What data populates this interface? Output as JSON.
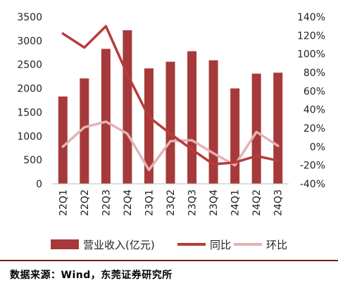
{
  "chart_data": {
    "type": "bar",
    "categories": [
      "22Q1",
      "22Q2",
      "22Q3",
      "22Q4",
      "23Q1",
      "23Q2",
      "23Q3",
      "23Q4",
      "24Q1",
      "24Q2",
      "24Q3"
    ],
    "series": [
      {
        "name": "营业收入(亿元)",
        "type": "bar",
        "axis": "left",
        "color": "#a63a3a",
        "values": [
          1830,
          2210,
          2830,
          3220,
          2420,
          2560,
          2780,
          2590,
          2000,
          2310,
          2330
        ]
      },
      {
        "name": "同比",
        "type": "line",
        "axis": "right",
        "color": "#b83b3b",
        "values": [
          122,
          107,
          130,
          78,
          32,
          14,
          -3,
          -19,
          -17,
          -10,
          -15
        ]
      },
      {
        "name": "环比",
        "type": "line",
        "axis": "right",
        "color": "#e3b3b3",
        "values": [
          0,
          21,
          27,
          14,
          -25,
          6,
          7,
          -7,
          -20,
          16,
          1
        ]
      }
    ],
    "y_left": {
      "lim": [
        0,
        3500
      ],
      "ticks": [
        "0",
        "500",
        "1000",
        "1500",
        "2000",
        "2500",
        "3000",
        "3500"
      ]
    },
    "y_right": {
      "lim": [
        -40,
        140
      ],
      "ticks": [
        "-40%",
        "-20%",
        "0%",
        "20%",
        "40%",
        "60%",
        "80%",
        "100%",
        "120%",
        "140%"
      ]
    },
    "legend_position": "bottom",
    "grid": false
  },
  "source": "数据来源：Wind，东莞证券研究所"
}
